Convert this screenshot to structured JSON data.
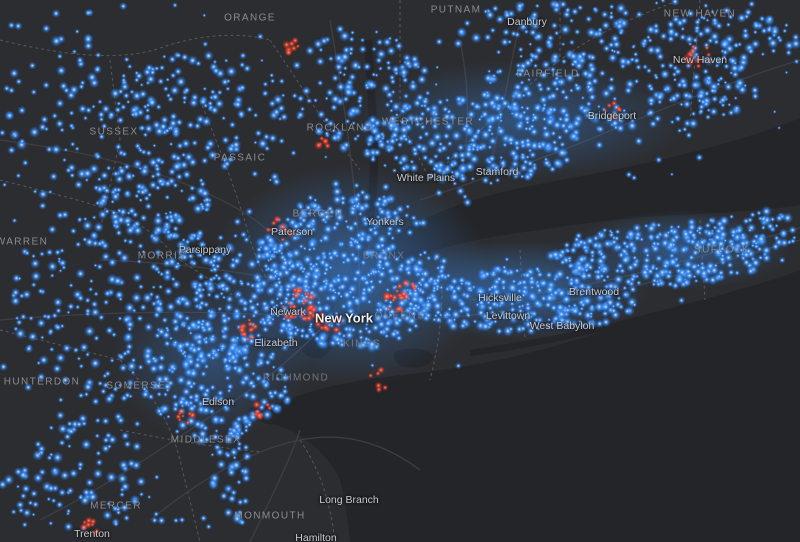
{
  "map": {
    "colors": {
      "land": "#2c2d30",
      "water": "#252629",
      "dot_blue": "#3d8ef0",
      "dot_core": "#e9f3ff",
      "dot_red": "#ff5a3c",
      "road": "#3b3d42",
      "boundary": "#55575c"
    },
    "labels": {
      "major": [
        {
          "id": "new-york",
          "text": "New York"
        }
      ],
      "cities": [
        {
          "id": "danbury",
          "text": "Danbury"
        },
        {
          "id": "new-haven",
          "text": "New Haven"
        },
        {
          "id": "bridgeport",
          "text": "Bridgeport"
        },
        {
          "id": "stamford",
          "text": "Stamford"
        },
        {
          "id": "white-plains",
          "text": "White Plains"
        },
        {
          "id": "yonkers",
          "text": "Yonkers"
        },
        {
          "id": "paterson",
          "text": "Paterson"
        },
        {
          "id": "parsippany",
          "text": "Parsippany"
        },
        {
          "id": "newark",
          "text": "Newark"
        },
        {
          "id": "elizabeth",
          "text": "Elizabeth"
        },
        {
          "id": "edison",
          "text": "Edison"
        },
        {
          "id": "hicksville",
          "text": "Hicksville"
        },
        {
          "id": "levittown",
          "text": "Levittown"
        },
        {
          "id": "brentwood",
          "text": "Brentwood"
        },
        {
          "id": "west-babylon",
          "text": "West Babylon"
        },
        {
          "id": "long-branch",
          "text": "Long Branch"
        },
        {
          "id": "trenton",
          "text": "Trenton"
        },
        {
          "id": "hamilton",
          "text": "Hamilton"
        }
      ],
      "counties": [
        {
          "id": "orange",
          "text": "ORANGE"
        },
        {
          "id": "putnam",
          "text": "PUTNAM"
        },
        {
          "id": "new-haven-county",
          "text": "NEW HAVEN"
        },
        {
          "id": "fairfield",
          "text": "FAIRFIELD"
        },
        {
          "id": "rockland",
          "text": "ROCKLAND"
        },
        {
          "id": "westchester",
          "text": "WESTCHESTER"
        },
        {
          "id": "sussex",
          "text": "SUSSEX"
        },
        {
          "id": "passaic",
          "text": "PASSAIC"
        },
        {
          "id": "bergen",
          "text": "BERGEN"
        },
        {
          "id": "warren",
          "text": "WARREN"
        },
        {
          "id": "morris",
          "text": "MORRIS"
        },
        {
          "id": "bronx",
          "text": "BRONX"
        },
        {
          "id": "queens",
          "text": "QUEENS"
        },
        {
          "id": "kings",
          "text": "KINGS"
        },
        {
          "id": "richmond",
          "text": "RICHMOND"
        },
        {
          "id": "suffolk",
          "text": "SUFFOLK"
        },
        {
          "id": "hunterdon",
          "text": "HUNTERDON"
        },
        {
          "id": "somerset",
          "text": "SOMERSET"
        },
        {
          "id": "middlesex",
          "text": "MIDDLESEX"
        },
        {
          "id": "mercer",
          "text": "MERCER"
        },
        {
          "id": "monmouth",
          "text": "MONMOUTH"
        }
      ]
    }
  }
}
